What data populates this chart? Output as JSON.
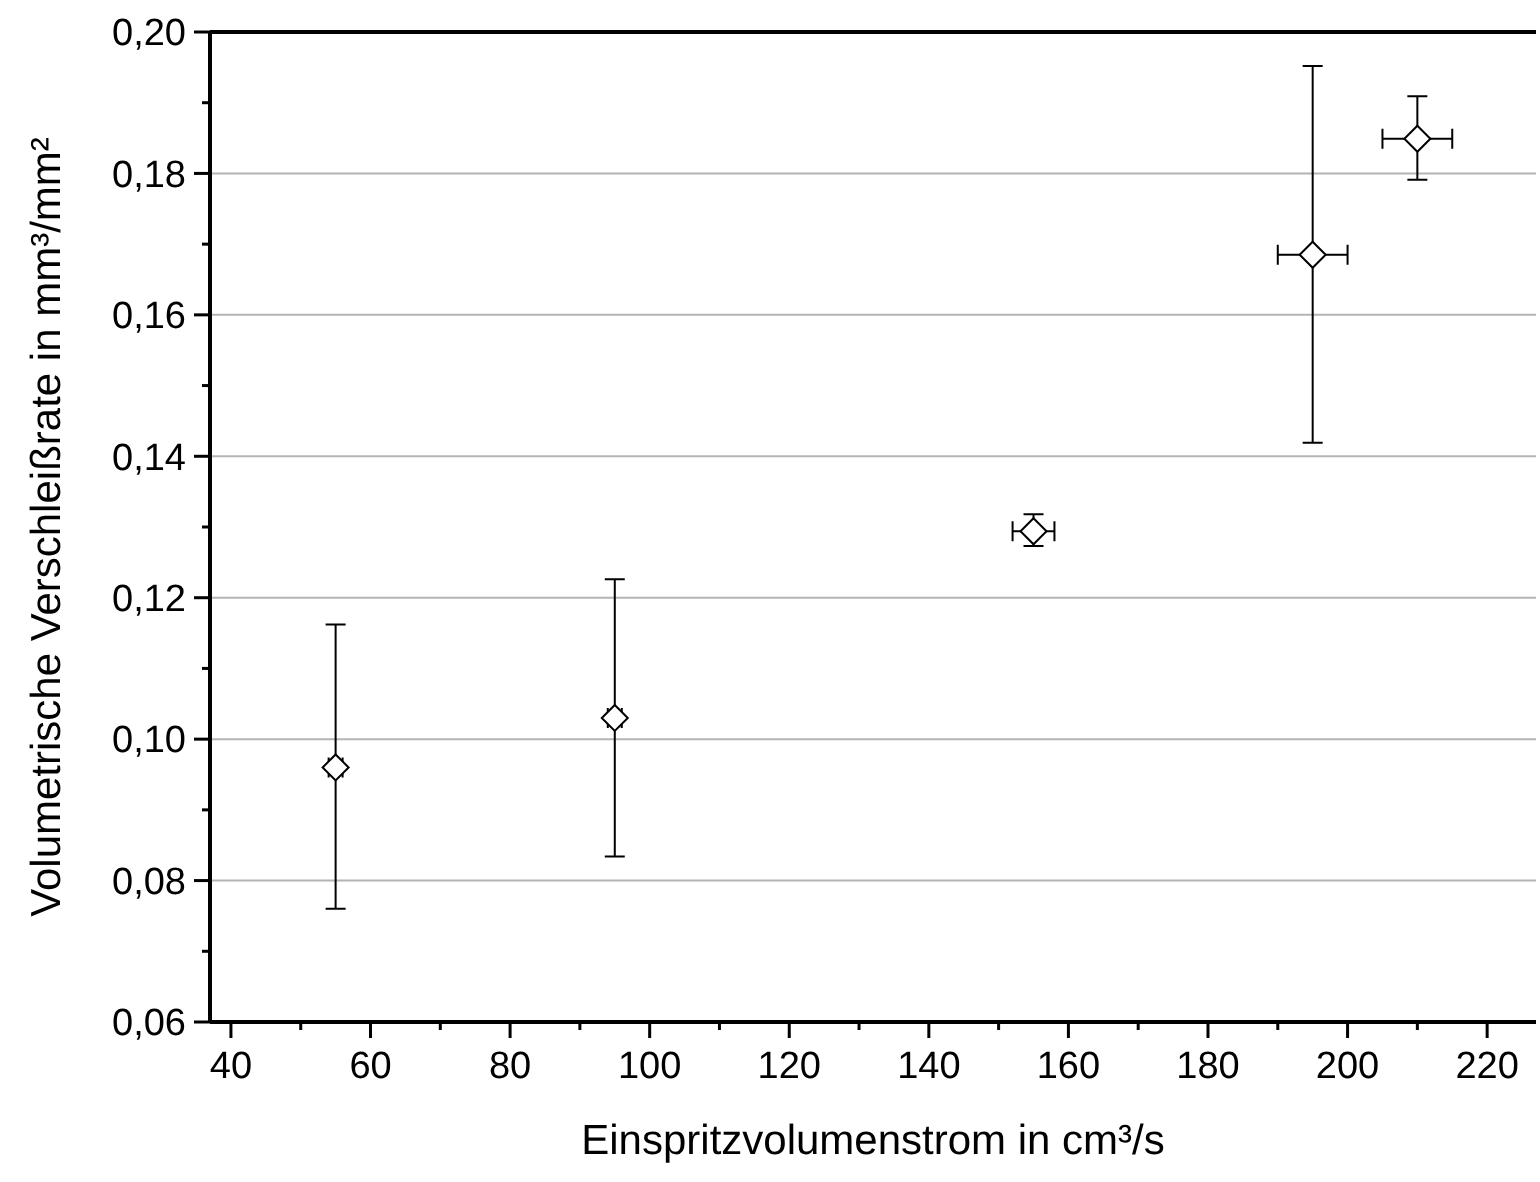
{
  "chart_data": {
    "type": "scatter",
    "xlabel": "Einspritzvolumenstrom in cm³/s",
    "ylabel": "Volumetrische Verschleißrate in mm³/mm²",
    "x": [
      55,
      95,
      155,
      195,
      210
    ],
    "series": [
      {
        "color": "#000000",
        "values": [
          0.096,
          0.103,
          0.1294,
          0.1685,
          0.1849
        ],
        "errors": [
          [
            0.076,
            0.1162
          ],
          [
            0.0834,
            0.1226
          ],
          [
            0.1273,
            0.1318
          ],
          [
            0.1419,
            0.1952
          ],
          [
            0.1791,
            0.1909
          ]
        ],
        "xerrors": [
          1,
          1,
          3,
          5,
          5
        ]
      }
    ],
    "xlim": [
      37,
      227
    ],
    "xticks": [
      40,
      60,
      80,
      100,
      120,
      140,
      160,
      180,
      200,
      220
    ],
    "ylim": [
      0.06,
      0.2
    ],
    "yticks": [
      {
        "value": 0.06,
        "label": "0,06"
      },
      {
        "value": 0.08,
        "label": "0,08"
      },
      {
        "value": 0.1,
        "label": "0,10"
      },
      {
        "value": 0.12,
        "label": "0,12"
      },
      {
        "value": 0.14,
        "label": "0,14"
      },
      {
        "value": 0.16,
        "label": "0,16"
      },
      {
        "value": 0.18,
        "label": "0,18"
      },
      {
        "value": 0.2,
        "label": "0,20"
      }
    ],
    "grid": "y",
    "marker": "diamond"
  }
}
